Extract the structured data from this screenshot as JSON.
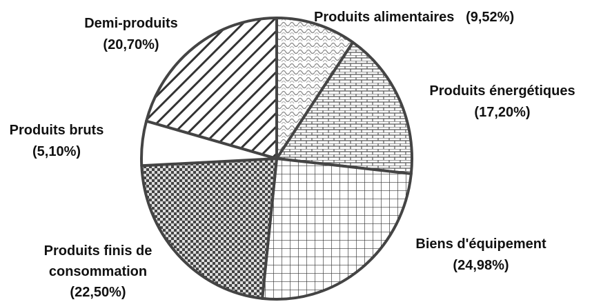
{
  "chart_data": {
    "type": "pie",
    "categories": [
      "Produits alimentaires",
      "Produits énergétiques",
      "Biens d'équipement",
      "Produits finis de consommation",
      "Produits bruts",
      "Demi-produits"
    ],
    "values": [
      9.52,
      17.2,
      24.98,
      22.5,
      5.1,
      20.7
    ],
    "value_labels": [
      "(9,52%)",
      "(17,20%)",
      "(24,98%)",
      "(22,50%)",
      "(5,10%)",
      "(20,70%)"
    ]
  }
}
